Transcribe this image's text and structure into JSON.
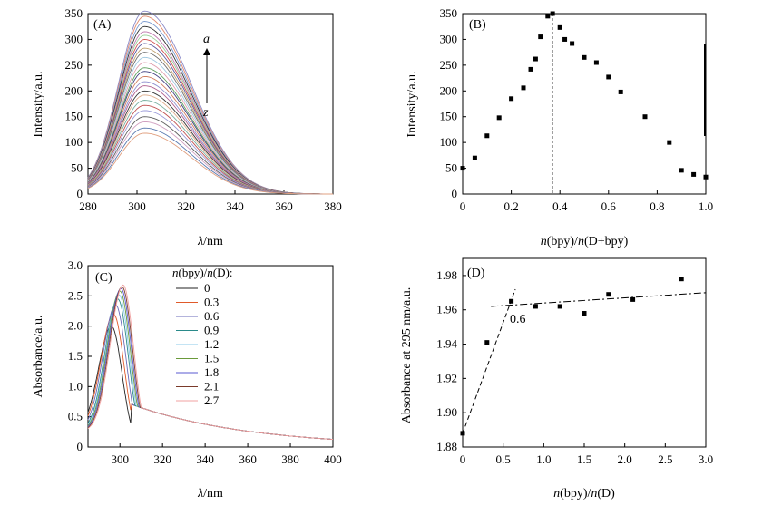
{
  "chart_data": [
    {
      "panel": "(A)",
      "type": "line",
      "xlabel_var": "λ",
      "xlabel_unit": "/nm",
      "ylabel": "Intensity/a.u.",
      "xlim": [
        280,
        380
      ],
      "ylim": [
        0,
        350
      ],
      "xticks": [
        280,
        300,
        320,
        340,
        360,
        380
      ],
      "yticks": [
        0,
        50,
        100,
        150,
        200,
        250,
        300,
        350
      ],
      "annotation_top": "a",
      "annotation_bottom": "z",
      "peak_x": 303,
      "series_peaks": [
        355,
        345,
        335,
        325,
        315,
        308,
        300,
        292,
        283,
        275,
        265,
        255,
        245,
        238,
        228,
        218,
        210,
        200,
        192,
        182,
        172,
        162,
        150,
        140,
        128,
        118
      ],
      "series_colors": [
        "#8a8ac8",
        "#e08a70",
        "#7a9ad0",
        "#333333",
        "#c07ab0",
        "#9ad09a",
        "#d05050",
        "#5a5aa0",
        "#c0a070",
        "#707070",
        "#a0c8e0",
        "#e0a0b0",
        "#60a060",
        "#404080",
        "#d08060",
        "#9090d0",
        "#b06090",
        "#3a3a3a",
        "#e0b090",
        "#7ab0a0",
        "#c05050",
        "#9a9ad8",
        "#606060",
        "#d0a0c0",
        "#5a7ab0",
        "#e0a080"
      ]
    },
    {
      "panel": "(B)",
      "type": "scatter",
      "xlabel": "n(bpy)/n(D+bpy)",
      "ylabel": "Intensity/a.u.",
      "xlim": [
        0,
        1.0
      ],
      "ylim": [
        0,
        350
      ],
      "xticks": [
        "0",
        "0.2",
        "0.4",
        "0.6",
        "0.8",
        "1.0"
      ],
      "yticks": [
        0,
        50,
        100,
        150,
        200,
        250,
        300,
        350
      ],
      "vline_x": 0.37,
      "x": [
        0.0,
        0.05,
        0.1,
        0.15,
        0.2,
        0.25,
        0.28,
        0.3,
        0.32,
        0.35,
        0.37,
        0.4,
        0.42,
        0.45,
        0.5,
        0.55,
        0.6,
        0.65,
        0.75,
        0.85,
        0.9,
        0.95,
        1.0
      ],
      "y": [
        50,
        70,
        113,
        148,
        185,
        206,
        242,
        262,
        305,
        345,
        350,
        323,
        300,
        292,
        265,
        255,
        227,
        198,
        150,
        100,
        46,
        38,
        33
      ]
    },
    {
      "panel": "(C)",
      "type": "line",
      "xlabel_var": "λ",
      "xlabel_unit": "/nm",
      "ylabel": "Absorbance/a.u.",
      "xlim": [
        285,
        400
      ],
      "ylim": [
        0,
        3.0
      ],
      "xticks": [
        300,
        320,
        340,
        360,
        380,
        400
      ],
      "yticks": [
        "0",
        "0.5",
        "1.0",
        "1.5",
        "2.0",
        "2.5",
        "3.0"
      ],
      "legend_title": "n(bpy)/n(D):",
      "legend_position": "top-right",
      "series": [
        {
          "name": "0",
          "peak": 2.0,
          "peak_x": 296,
          "color": "#222222"
        },
        {
          "name": "0.3",
          "peak": 2.2,
          "peak_x": 297,
          "color": "#e05a2a"
        },
        {
          "name": "0.6",
          "peak": 2.35,
          "peak_x": 298,
          "color": "#6a6ab8"
        },
        {
          "name": "0.9",
          "peak": 2.45,
          "peak_x": 299,
          "color": "#2a8a8a"
        },
        {
          "name": "1.2",
          "peak": 2.52,
          "peak_x": 299.5,
          "color": "#8ac8e8"
        },
        {
          "name": "1.5",
          "peak": 2.58,
          "peak_x": 300,
          "color": "#6a9a3a"
        },
        {
          "name": "1.8",
          "peak": 2.62,
          "peak_x": 300.5,
          "color": "#5a5ad0"
        },
        {
          "name": "2.1",
          "peak": 2.65,
          "peak_x": 301,
          "color": "#7a3a2a"
        },
        {
          "name": "2.7",
          "peak": 2.68,
          "peak_x": 301.5,
          "color": "#f0a0a0"
        }
      ]
    },
    {
      "panel": "(D)",
      "type": "scatter",
      "xlabel": "n(bpy)/n(D)",
      "ylabel": "Absorbance at 295 nm/a.u.",
      "xlim": [
        0,
        3.0
      ],
      "ylim": [
        1.88,
        1.99
      ],
      "xticks": [
        "0",
        "0.5",
        "1.0",
        "1.5",
        "2.0",
        "2.5",
        "3.0"
      ],
      "yticks": [
        "1.88",
        "1.90",
        "1.92",
        "1.94",
        "1.96",
        "1.98"
      ],
      "annotation": "0.6",
      "x": [
        0.0,
        0.3,
        0.6,
        0.9,
        1.2,
        1.5,
        1.8,
        2.1,
        2.7
      ],
      "y": [
        1.888,
        1.941,
        1.965,
        1.962,
        1.962,
        1.958,
        1.969,
        1.966,
        1.978
      ],
      "fit1": {
        "x": [
          0,
          0.65
        ],
        "y": [
          1.888,
          1.972
        ]
      },
      "fit2": {
        "x": [
          0.35,
          3.0
        ],
        "y": [
          1.962,
          1.97
        ]
      }
    }
  ]
}
